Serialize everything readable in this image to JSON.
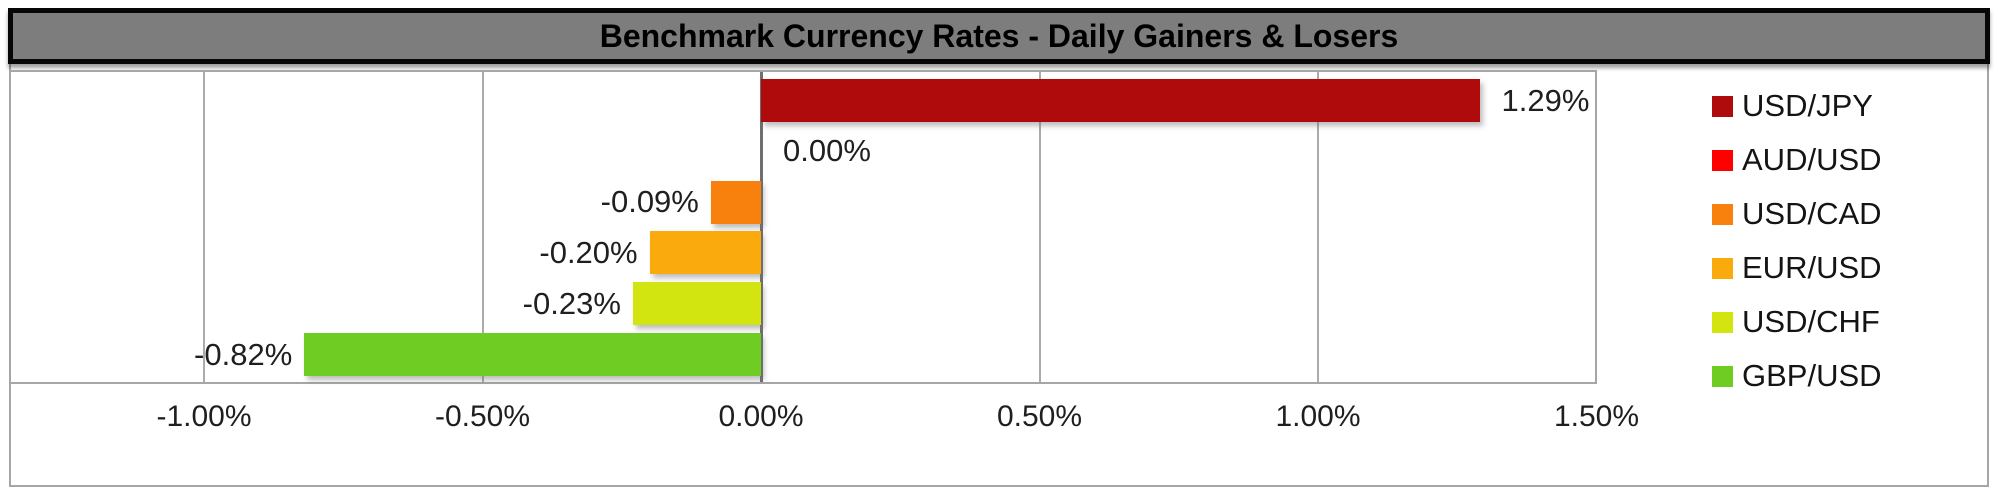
{
  "title": "Benchmark Currency Rates - Daily Gainers & Losers",
  "styles": {
    "title_bar_bg": "#7d7d7d",
    "title_border": "#070707",
    "grid_color": "#ababab",
    "zero_line_color": "#6f6f6f",
    "frame_color": "#a6a6a6"
  },
  "chart_data": {
    "type": "bar",
    "orientation": "horizontal",
    "title": "Benchmark Currency Rates - Daily Gainers & Losers",
    "categories": [
      "USD/JPY",
      "AUD/USD",
      "USD/CAD",
      "EUR/USD",
      "USD/CHF",
      "GBP/USD"
    ],
    "values": [
      1.29,
      0.0,
      -0.09,
      -0.2,
      -0.23,
      -0.82
    ],
    "data_labels": [
      "1.29%",
      "0.00%",
      "-0.09%",
      "-0.20%",
      "-0.23%",
      "-0.82%"
    ],
    "colors": [
      "#b00b0c",
      "#fe0000",
      "#f8800c",
      "#fbaa0d",
      "#d3e511",
      "#6fcc23"
    ],
    "x_ticks": [
      -1.0,
      -0.5,
      0.0,
      0.5,
      1.0,
      1.5
    ],
    "x_tick_labels": [
      "-1.00%",
      "-0.50%",
      "0.00%",
      "0.50%",
      "1.00%",
      "1.50%"
    ],
    "xlim": [
      -1.35,
      1.5
    ],
    "xlabel": "",
    "ylabel": "",
    "grid": true,
    "legend_position": "right"
  }
}
